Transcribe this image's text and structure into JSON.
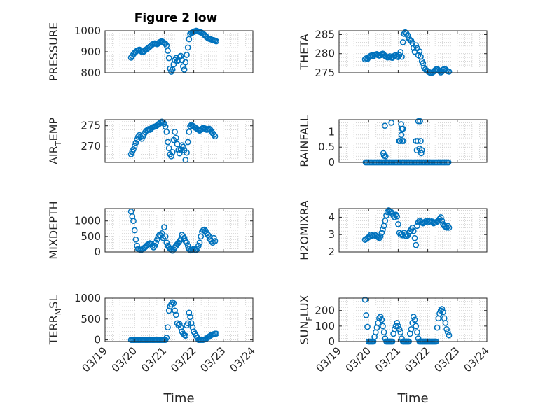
{
  "figure_title": "Figure 2 low",
  "colors": {
    "marker": "#0072BD",
    "axes": "#262626",
    "grid": "#c8c8c8"
  },
  "chart_data": [
    {
      "type": "scatter",
      "title": "Figure 2 low",
      "ylabel": "PRESSURE",
      "xlabel": "",
      "ylim": [
        800,
        1000
      ],
      "yticks": [
        "800",
        "900",
        "1000"
      ],
      "yticks_v": [
        800,
        900,
        1000
      ],
      "xlim": [
        0,
        5
      ],
      "xticks": [
        "03/19",
        "03/20",
        "03/21",
        "03/22",
        "03/23",
        "03/24"
      ],
      "grid": true,
      "x": [
        0.88,
        0.92,
        0.96,
        1.0,
        1.04,
        1.08,
        1.12,
        1.16,
        1.2,
        1.24,
        1.28,
        1.32,
        1.36,
        1.4,
        1.44,
        1.48,
        1.52,
        1.56,
        1.6,
        1.64,
        1.68,
        1.72,
        1.76,
        1.8,
        1.84,
        1.88,
        1.92,
        1.96,
        2.0,
        2.04,
        2.08,
        2.12,
        2.16,
        2.2,
        2.24,
        2.28,
        2.32,
        2.36,
        2.4,
        2.44,
        2.48,
        2.52,
        2.56,
        2.6,
        2.64,
        2.68,
        2.72,
        2.76,
        2.8,
        2.84,
        2.88,
        2.92,
        2.96,
        3.0,
        3.04,
        3.08,
        3.12,
        3.16,
        3.2,
        3.24,
        3.28,
        3.32,
        3.36,
        3.4,
        3.44,
        3.48,
        3.52,
        3.56,
        3.6,
        3.64,
        3.68,
        3.72,
        3.76
      ],
      "y": [
        872,
        880,
        888,
        895,
        900,
        905,
        908,
        910,
        905,
        900,
        898,
        902,
        908,
        912,
        916,
        920,
        925,
        930,
        935,
        938,
        940,
        938,
        936,
        940,
        945,
        948,
        950,
        946,
        942,
        938,
        930,
        905,
        870,
        820,
        805,
        815,
        840,
        860,
        870,
        855,
        860,
        875,
        880,
        860,
        830,
        815,
        850,
        885,
        920,
        960,
        985,
        990,
        992,
        995,
        998,
        1000,
        998,
        996,
        995,
        992,
        990,
        985,
        980,
        975,
        970,
        965,
        962,
        960,
        958,
        956,
        955,
        952,
        950
      ]
    },
    {
      "type": "scatter",
      "ylabel": "THETA",
      "xlabel": "",
      "ylim": [
        275,
        286
      ],
      "yticks": [
        "275",
        "280",
        "285"
      ],
      "yticks_v": [
        275,
        280,
        285
      ],
      "xlim": [
        0,
        5
      ],
      "xticks": [
        "03/19",
        "03/20",
        "03/21",
        "03/22",
        "03/23",
        "03/24"
      ],
      "grid": true,
      "x": [
        0.88,
        0.92,
        0.96,
        1.0,
        1.04,
        1.08,
        1.12,
        1.16,
        1.2,
        1.24,
        1.28,
        1.32,
        1.36,
        1.4,
        1.44,
        1.48,
        1.52,
        1.56,
        1.6,
        1.64,
        1.68,
        1.72,
        1.76,
        1.8,
        1.84,
        1.88,
        1.92,
        1.96,
        2.0,
        2.04,
        2.08,
        2.12,
        2.16,
        2.2,
        2.24,
        2.28,
        2.32,
        2.36,
        2.4,
        2.44,
        2.48,
        2.52,
        2.56,
        2.6,
        2.64,
        2.68,
        2.72,
        2.76,
        2.8,
        2.84,
        2.88,
        2.92,
        2.96,
        3.0,
        3.04,
        3.08,
        3.12,
        3.16,
        3.2,
        3.24,
        3.28,
        3.32,
        3.36,
        3.4,
        3.44,
        3.48,
        3.52,
        3.56,
        3.6,
        3.64,
        3.68,
        3.72
      ],
      "y": [
        278.5,
        278.8,
        278.6,
        279.0,
        279.3,
        279.5,
        279.6,
        279.4,
        279.7,
        279.8,
        279.9,
        279.6,
        279.5,
        279.6,
        279.9,
        280.0,
        279.7,
        279.4,
        279.2,
        279.0,
        279.1,
        279.3,
        279.0,
        278.9,
        279.2,
        279.5,
        279.6,
        279.3,
        279.1,
        279.6,
        280.4,
        279.2,
        283.0,
        285.2,
        285.6,
        285.3,
        284.8,
        284.0,
        283.6,
        283.4,
        282.8,
        281.5,
        280.5,
        282.2,
        281.4,
        279.6,
        280.6,
        279.2,
        278.0,
        277.5,
        276.3,
        275.9,
        275.6,
        275.4,
        275.2,
        275.0,
        274.9,
        275.1,
        275.3,
        275.6,
        275.9,
        276.0,
        275.7,
        275.4,
        275.1,
        275.3,
        275.8,
        276.0,
        275.9,
        275.6,
        275.4,
        275.3
      ]
    },
    {
      "type": "scatter",
      "ylabel": "AIR_TEMP",
      "xlabel": "",
      "ylim": [
        266,
        276.5
      ],
      "yticks": [
        "270",
        "275"
      ],
      "yticks_v": [
        270,
        275
      ],
      "xlim": [
        0,
        5
      ],
      "xticks": [
        "03/19",
        "03/20",
        "03/21",
        "03/22",
        "03/23",
        "03/24"
      ],
      "grid": true,
      "x": [
        0.88,
        0.92,
        0.96,
        1.0,
        1.04,
        1.08,
        1.12,
        1.16,
        1.2,
        1.24,
        1.28,
        1.32,
        1.36,
        1.4,
        1.44,
        1.48,
        1.52,
        1.56,
        1.6,
        1.64,
        1.68,
        1.72,
        1.76,
        1.8,
        1.84,
        1.88,
        1.92,
        1.96,
        2.0,
        2.04,
        2.08,
        2.12,
        2.16,
        2.2,
        2.24,
        2.28,
        2.32,
        2.36,
        2.4,
        2.44,
        2.48,
        2.52,
        2.56,
        2.6,
        2.64,
        2.68,
        2.72,
        2.76,
        2.8,
        2.84,
        2.88,
        2.92,
        2.96,
        3.0,
        3.04,
        3.08,
        3.12,
        3.16,
        3.2,
        3.24,
        3.28,
        3.32,
        3.36,
        3.4,
        3.44,
        3.48,
        3.52,
        3.56,
        3.6,
        3.64,
        3.68,
        3.72
      ],
      "y": [
        268.0,
        268.6,
        269.2,
        270.0,
        270.8,
        271.6,
        272.3,
        272.7,
        272.2,
        271.8,
        272.4,
        273.0,
        273.4,
        273.8,
        274.0,
        274.2,
        274.0,
        274.3,
        274.6,
        274.7,
        274.8,
        274.9,
        275.1,
        275.4,
        275.5,
        275.8,
        276.0,
        275.9,
        275.5,
        274.8,
        273.5,
        271.0,
        269.5,
        268.0,
        267.5,
        268.5,
        271.5,
        273.5,
        272.0,
        270.5,
        269.0,
        268.2,
        269.2,
        270.2,
        269.8,
        269.0,
        266.6,
        268.4,
        271.0,
        273.5,
        274.9,
        275.2,
        275.0,
        274.8,
        274.6,
        274.4,
        274.2,
        274.0,
        273.8,
        274.0,
        274.3,
        274.5,
        274.4,
        274.2,
        274.0,
        274.1,
        274.3,
        274.0,
        273.6,
        273.2,
        272.8,
        272.4
      ]
    },
    {
      "type": "scatter",
      "ylabel": "RAINFALL",
      "xlabel": "",
      "ylim": [
        0,
        1.4
      ],
      "yticks": [
        "0",
        "0.5",
        "1"
      ],
      "yticks_v": [
        0,
        0.5,
        1
      ],
      "xlim": [
        0,
        5
      ],
      "xticks": [
        "03/19",
        "03/20",
        "03/21",
        "03/22",
        "03/23",
        "03/24"
      ],
      "grid": true,
      "x": [
        0.9,
        0.95,
        1.0,
        1.05,
        1.1,
        1.15,
        1.2,
        1.25,
        1.3,
        1.35,
        1.4,
        1.45,
        1.5,
        1.55,
        1.6,
        1.65,
        1.7,
        1.75,
        1.8,
        1.85,
        1.9,
        1.95,
        2.0,
        2.05,
        2.1,
        2.15,
        2.2,
        2.25,
        2.3,
        2.35,
        2.4,
        2.45,
        2.5,
        2.55,
        2.6,
        2.65,
        2.7,
        2.75,
        2.8,
        2.85,
        2.9,
        2.95,
        3.0,
        3.05,
        3.1,
        3.15,
        3.2,
        3.25,
        3.3,
        3.35,
        3.4,
        3.45,
        3.5,
        3.55,
        3.6,
        3.65,
        3.7,
        1.5,
        1.52,
        1.55,
        1.57,
        1.77,
        2.03,
        2.06,
        2.1,
        2.11,
        2.13,
        2.14,
        2.16,
        2.18,
        2.6,
        2.63,
        2.66,
        2.68,
        2.72,
        2.74,
        2.76,
        2.78,
        2.8
      ],
      "y": [
        0,
        0,
        0,
        0,
        0,
        0,
        0,
        0,
        0,
        0,
        0,
        0,
        0,
        0,
        0,
        0,
        0,
        0,
        0,
        0,
        0,
        0,
        0,
        0,
        0,
        0,
        0,
        0,
        0,
        0,
        0,
        0,
        0,
        0,
        0,
        0,
        0,
        0,
        0,
        0,
        0,
        0,
        0,
        0,
        0,
        0,
        0,
        0,
        0,
        0,
        0,
        0,
        0,
        0,
        0,
        0,
        0,
        0.3,
        0.22,
        1.2,
        0.2,
        1.3,
        0.7,
        0.7,
        1.25,
        0.9,
        1.1,
        0.7,
        1.1,
        0.7,
        0.7,
        0.4,
        0.7,
        1.35,
        0.45,
        1.35,
        0.7,
        0.3,
        0.4
      ]
    },
    {
      "type": "scatter",
      "ylabel": "MIXDEPTH",
      "xlabel": "",
      "ylim": [
        0,
        1400
      ],
      "yticks": [
        "0",
        "500",
        "1000"
      ],
      "yticks_v": [
        0,
        500,
        1000
      ],
      "xlim": [
        0,
        5
      ],
      "xticks": [
        "03/19",
        "03/20",
        "03/21",
        "03/22",
        "03/23",
        "03/24"
      ],
      "grid": true,
      "x": [
        0.88,
        0.92,
        0.96,
        1.0,
        1.04,
        1.08,
        1.12,
        1.16,
        1.2,
        1.24,
        1.28,
        1.32,
        1.36,
        1.4,
        1.44,
        1.48,
        1.52,
        1.56,
        1.6,
        1.64,
        1.68,
        1.72,
        1.76,
        1.8,
        1.84,
        1.88,
        1.92,
        1.96,
        2.0,
        2.04,
        2.08,
        2.12,
        2.16,
        2.2,
        2.24,
        2.28,
        2.32,
        2.36,
        2.4,
        2.44,
        2.48,
        2.52,
        2.56,
        2.6,
        2.64,
        2.68,
        2.72,
        2.76,
        2.8,
        2.84,
        2.88,
        2.92,
        2.96,
        3.0,
        3.04,
        3.08,
        3.12,
        3.16,
        3.2,
        3.24,
        3.28,
        3.32,
        3.36,
        3.4,
        3.44,
        3.48,
        3.52,
        3.56,
        3.6,
        3.64,
        3.68,
        3.72
      ],
      "y": [
        1300,
        1150,
        1000,
        700,
        400,
        200,
        100,
        80,
        60,
        70,
        100,
        130,
        160,
        200,
        230,
        260,
        280,
        250,
        200,
        150,
        200,
        300,
        400,
        500,
        550,
        530,
        600,
        450,
        800,
        500,
        300,
        200,
        150,
        100,
        80,
        40,
        80,
        150,
        200,
        250,
        300,
        350,
        400,
        550,
        500,
        450,
        350,
        300,
        200,
        100,
        50,
        60,
        80,
        100,
        70,
        60,
        100,
        200,
        300,
        500,
        650,
        700,
        720,
        680,
        600,
        550,
        500,
        400,
        350,
        300,
        450,
        350
      ]
    },
    {
      "type": "scatter",
      "ylabel": "H2OMIXRA",
      "xlabel": "",
      "ylim": [
        2,
        4.5
      ],
      "yticks": [
        "2",
        "3",
        "4"
      ],
      "yticks_v": [
        2,
        3,
        4
      ],
      "xlim": [
        0,
        5
      ],
      "xticks": [
        "03/19",
        "03/20",
        "03/21",
        "03/22",
        "03/23",
        "03/24"
      ],
      "grid": true,
      "x": [
        0.88,
        0.92,
        0.96,
        1.0,
        1.04,
        1.08,
        1.12,
        1.16,
        1.2,
        1.24,
        1.28,
        1.32,
        1.36,
        1.4,
        1.44,
        1.48,
        1.52,
        1.56,
        1.6,
        1.64,
        1.68,
        1.72,
        1.76,
        1.8,
        1.84,
        1.88,
        1.92,
        1.96,
        2.0,
        2.04,
        2.08,
        2.12,
        2.16,
        2.2,
        2.24,
        2.28,
        2.32,
        2.36,
        2.4,
        2.44,
        2.48,
        2.52,
        2.56,
        2.6,
        2.64,
        2.68,
        2.72,
        2.76,
        2.8,
        2.84,
        2.88,
        2.92,
        2.96,
        3.0,
        3.04,
        3.08,
        3.12,
        3.16,
        3.2,
        3.24,
        3.28,
        3.32,
        3.36,
        3.4,
        3.44,
        3.48,
        3.52,
        3.56,
        3.6,
        3.64,
        3.68,
        3.72
      ],
      "y": [
        2.7,
        2.75,
        2.8,
        2.85,
        2.9,
        3.0,
        2.95,
        2.9,
        3.0,
        2.95,
        2.9,
        2.85,
        2.8,
        2.9,
        3.1,
        3.3,
        3.5,
        3.8,
        4.1,
        4.3,
        4.4,
        4.35,
        4.3,
        4.2,
        4.1,
        4.0,
        4.15,
        4.05,
        3.6,
        3.1,
        3.0,
        3.05,
        2.95,
        3.1,
        3.0,
        2.9,
        2.95,
        3.1,
        3.2,
        3.3,
        3.4,
        3.2,
        2.8,
        2.4,
        3.5,
        3.7,
        3.8,
        3.75,
        3.7,
        3.65,
        3.7,
        3.75,
        3.8,
        3.7,
        3.75,
        3.8,
        3.7,
        3.75,
        3.65,
        3.7,
        3.7,
        3.75,
        3.8,
        3.9,
        4.0,
        3.8,
        3.6,
        3.5,
        3.45,
        3.4,
        3.5,
        3.4
      ]
    },
    {
      "type": "scatter",
      "ylabel": "TERR_MSL",
      "xlabel": "Time",
      "ylim": [
        -40,
        1000
      ],
      "yticks": [
        "0",
        "500",
        "1000"
      ],
      "yticks_v": [
        0,
        500,
        1000
      ],
      "xlim": [
        0,
        5
      ],
      "xticks": [
        "03/19",
        "03/20",
        "03/21",
        "03/22",
        "03/23",
        "03/24"
      ],
      "grid": true,
      "x": [
        0.88,
        0.92,
        0.96,
        1.0,
        1.04,
        1.08,
        1.12,
        1.16,
        1.2,
        1.24,
        1.28,
        1.32,
        1.36,
        1.4,
        1.44,
        1.48,
        1.52,
        1.56,
        1.6,
        1.64,
        1.68,
        1.72,
        1.76,
        1.8,
        1.84,
        1.88,
        1.92,
        1.96,
        2.0,
        2.04,
        2.08,
        2.12,
        2.16,
        2.2,
        2.24,
        2.28,
        2.32,
        2.36,
        2.4,
        2.44,
        2.48,
        2.52,
        2.56,
        2.6,
        2.64,
        2.68,
        2.72,
        2.76,
        2.8,
        2.84,
        2.88,
        2.92,
        2.96,
        3.0,
        3.04,
        3.08,
        3.12,
        3.16,
        3.2,
        3.24,
        3.28,
        3.32,
        3.36,
        3.4,
        3.44,
        3.48,
        3.52,
        3.56,
        3.6,
        3.64,
        3.68,
        3.72,
        3.76
      ],
      "y": [
        0,
        0,
        0,
        0,
        0,
        0,
        0,
        0,
        0,
        0,
        0,
        0,
        0,
        0,
        0,
        0,
        0,
        0,
        0,
        0,
        0,
        0,
        0,
        0,
        0,
        0,
        0,
        0,
        0,
        0,
        50,
        300,
        700,
        800,
        850,
        900,
        880,
        700,
        600,
        400,
        350,
        380,
        300,
        200,
        150,
        120,
        100,
        350,
        400,
        650,
        550,
        400,
        300,
        200,
        150,
        100,
        50,
        0,
        0,
        0,
        0,
        0,
        10,
        20,
        40,
        60,
        80,
        100,
        120,
        130,
        140,
        150,
        150
      ]
    },
    {
      "type": "scatter",
      "ylabel": "SUN_FLUX",
      "xlabel": "Time",
      "ylim": [
        0,
        280
      ],
      "yticks": [
        "0",
        "100",
        "200"
      ],
      "yticks_v": [
        0,
        100,
        200
      ],
      "xlim": [
        0,
        5
      ],
      "xticks": [
        "03/19",
        "03/20",
        "03/21",
        "03/22",
        "03/23",
        "03/24"
      ],
      "grid": true,
      "x": [
        0.88,
        0.92,
        0.96,
        1.0,
        1.04,
        1.08,
        1.12,
        1.16,
        1.2,
        1.24,
        1.28,
        1.32,
        1.36,
        1.4,
        1.44,
        1.48,
        1.52,
        1.56,
        1.6,
        1.64,
        1.68,
        1.72,
        1.76,
        1.8,
        1.84,
        1.88,
        1.92,
        1.96,
        2.0,
        2.04,
        2.08,
        2.12,
        2.16,
        2.2,
        2.24,
        2.28,
        2.32,
        2.36,
        2.4,
        2.44,
        2.48,
        2.52,
        2.56,
        2.6,
        2.64,
        2.68,
        2.72,
        2.76,
        2.8,
        2.84,
        2.88,
        2.92,
        2.96,
        3.0,
        3.04,
        3.08,
        3.12,
        3.16,
        3.2,
        3.24,
        3.28,
        3.32,
        3.36,
        3.4,
        3.44,
        3.48,
        3.52,
        3.56,
        3.6,
        3.64,
        3.68,
        3.72
      ],
      "y": [
        270,
        170,
        95,
        0,
        0,
        0,
        0,
        0,
        30,
        60,
        90,
        120,
        150,
        160,
        140,
        100,
        60,
        20,
        0,
        0,
        0,
        0,
        0,
        0,
        50,
        80,
        100,
        120,
        100,
        80,
        60,
        20,
        0,
        0,
        0,
        0,
        0,
        0,
        50,
        80,
        120,
        160,
        140,
        100,
        60,
        20,
        0,
        0,
        0,
        0,
        0,
        0,
        0,
        0,
        0,
        0,
        0,
        0,
        0,
        0,
        0,
        90,
        150,
        180,
        200,
        210,
        190,
        150,
        120,
        80,
        60,
        40
      ]
    }
  ]
}
